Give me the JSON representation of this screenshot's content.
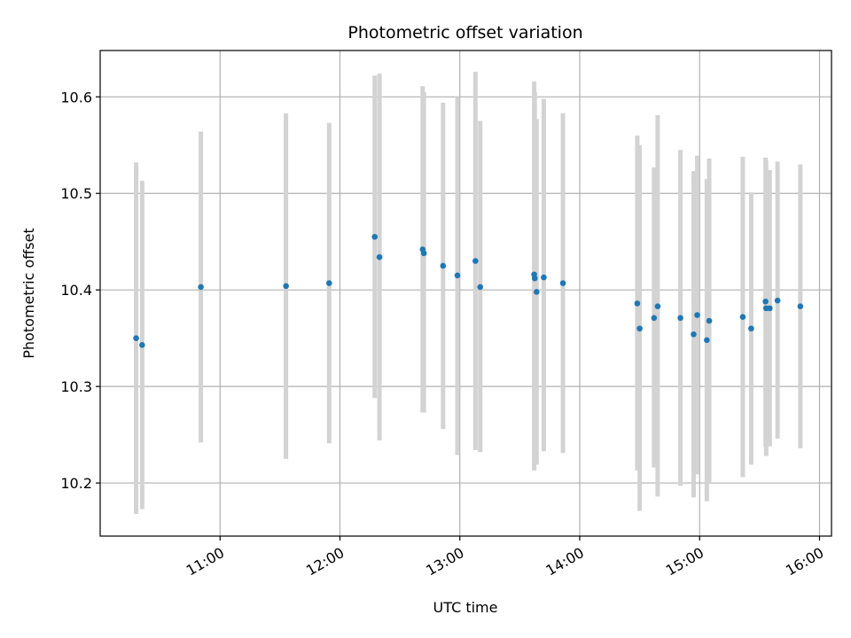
{
  "chart_data": {
    "type": "scatter",
    "title": "Photometric offset variation",
    "xlabel": "UTC time",
    "ylabel": "Photometric offset",
    "x_unit": "hours (UTC, decimal)",
    "xlim": [
      10.0,
      16.1
    ],
    "ylim": [
      10.145,
      10.648
    ],
    "x_ticks": [
      {
        "value": 11.0,
        "label": "11:00"
      },
      {
        "value": 12.0,
        "label": "12:00"
      },
      {
        "value": 13.0,
        "label": "13:00"
      },
      {
        "value": 14.0,
        "label": "14:00"
      },
      {
        "value": 15.0,
        "label": "15:00"
      },
      {
        "value": 16.0,
        "label": "16:00"
      }
    ],
    "y_ticks": [
      {
        "value": 10.2,
        "label": "10.2"
      },
      {
        "value": 10.3,
        "label": "10.3"
      },
      {
        "value": 10.4,
        "label": "10.4"
      },
      {
        "value": 10.5,
        "label": "10.5"
      },
      {
        "value": 10.6,
        "label": "10.6"
      }
    ],
    "grid": true,
    "point_color": "#1f77b4",
    "errorbar_color": "#d3d3d3",
    "points": [
      {
        "t": 10.3,
        "y": 10.35,
        "low": 10.168,
        "high": 10.532
      },
      {
        "t": 10.35,
        "y": 10.343,
        "low": 10.173,
        "high": 10.513
      },
      {
        "t": 10.84,
        "y": 10.403,
        "low": 10.242,
        "high": 10.564
      },
      {
        "t": 11.55,
        "y": 10.404,
        "low": 10.225,
        "high": 10.583
      },
      {
        "t": 11.91,
        "y": 10.407,
        "low": 10.241,
        "high": 10.573
      },
      {
        "t": 12.29,
        "y": 10.455,
        "low": 10.288,
        "high": 10.622
      },
      {
        "t": 12.33,
        "y": 10.434,
        "low": 10.244,
        "high": 10.624
      },
      {
        "t": 12.69,
        "y": 10.442,
        "low": 10.273,
        "high": 10.611
      },
      {
        "t": 12.7,
        "y": 10.438,
        "low": 10.273,
        "high": 10.605
      },
      {
        "t": 12.86,
        "y": 10.425,
        "low": 10.256,
        "high": 10.594
      },
      {
        "t": 12.98,
        "y": 10.415,
        "low": 10.229,
        "high": 10.6
      },
      {
        "t": 13.13,
        "y": 10.43,
        "low": 10.234,
        "high": 10.626
      },
      {
        "t": 13.17,
        "y": 10.403,
        "low": 10.232,
        "high": 10.575
      },
      {
        "t": 13.62,
        "y": 10.416,
        "low": 10.213,
        "high": 10.616
      },
      {
        "t": 13.625,
        "y": 10.412,
        "low": 10.225,
        "high": 10.605
      },
      {
        "t": 13.64,
        "y": 10.398,
        "low": 10.219,
        "high": 10.577
      },
      {
        "t": 13.7,
        "y": 10.413,
        "low": 10.233,
        "high": 10.598
      },
      {
        "t": 13.86,
        "y": 10.407,
        "low": 10.231,
        "high": 10.583
      },
      {
        "t": 14.48,
        "y": 10.386,
        "low": 10.213,
        "high": 10.56
      },
      {
        "t": 14.5,
        "y": 10.36,
        "low": 10.171,
        "high": 10.55
      },
      {
        "t": 14.62,
        "y": 10.371,
        "low": 10.216,
        "high": 10.527
      },
      {
        "t": 14.65,
        "y": 10.383,
        "low": 10.186,
        "high": 10.581
      },
      {
        "t": 14.84,
        "y": 10.371,
        "low": 10.197,
        "high": 10.545
      },
      {
        "t": 14.95,
        "y": 10.354,
        "low": 10.185,
        "high": 10.523
      },
      {
        "t": 14.98,
        "y": 10.374,
        "low": 10.209,
        "high": 10.539
      },
      {
        "t": 15.06,
        "y": 10.348,
        "low": 10.181,
        "high": 10.515
      },
      {
        "t": 15.08,
        "y": 10.368,
        "low": 10.2,
        "high": 10.536
      },
      {
        "t": 15.36,
        "y": 10.372,
        "low": 10.206,
        "high": 10.538
      },
      {
        "t": 15.43,
        "y": 10.36,
        "low": 10.219,
        "high": 10.501
      },
      {
        "t": 15.55,
        "y": 10.388,
        "low": 10.238,
        "high": 10.537
      },
      {
        "t": 15.555,
        "y": 10.381,
        "low": 10.228,
        "high": 10.534
      },
      {
        "t": 15.585,
        "y": 10.381,
        "low": 10.238,
        "high": 10.524
      },
      {
        "t": 15.65,
        "y": 10.389,
        "low": 10.246,
        "high": 10.533
      },
      {
        "t": 15.84,
        "y": 10.383,
        "low": 10.236,
        "high": 10.53
      }
    ]
  }
}
